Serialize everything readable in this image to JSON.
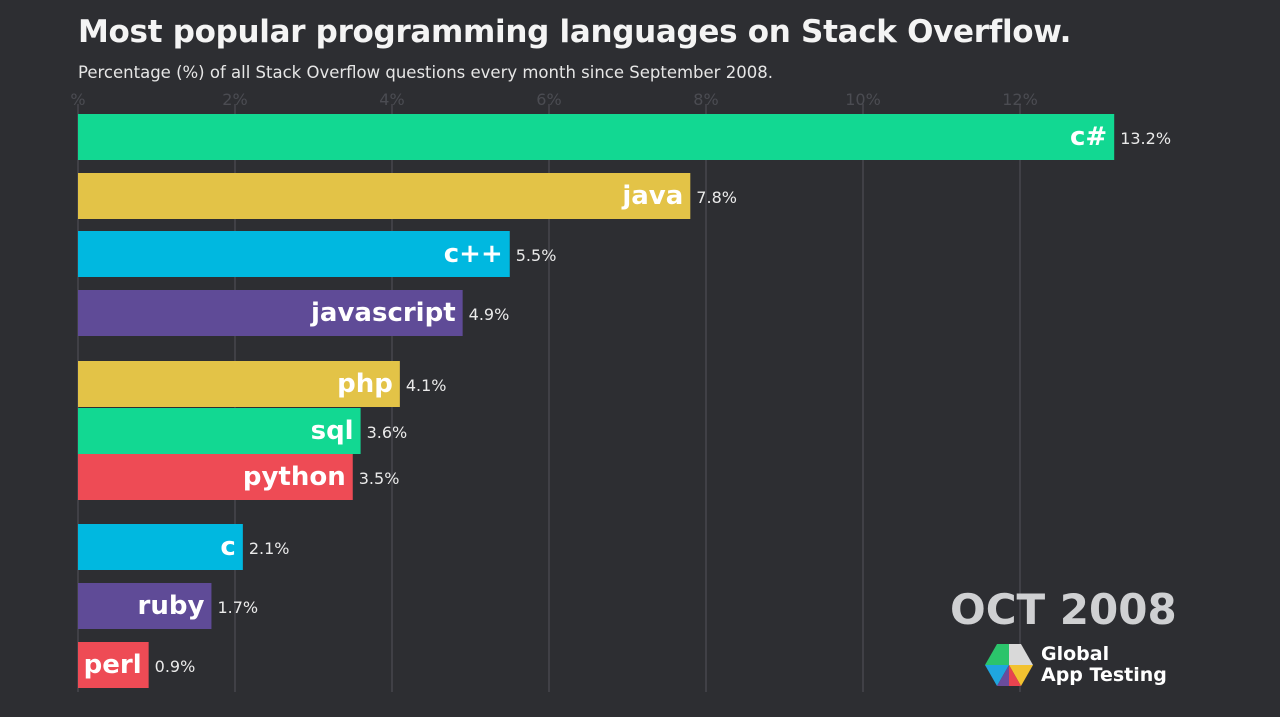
{
  "title": "Most popular programming languages on Stack Overflow.",
  "subtitle": "Percentage (%) of all Stack Overflow questions every month since September 2008.",
  "date_label": "OCT 2008",
  "logo": {
    "line1": "Global",
    "line2": "App Testing"
  },
  "chart_data": {
    "type": "bar",
    "orientation": "horizontal",
    "title": "Most popular programming languages on Stack Overflow.",
    "subtitle": "Percentage (%) of all Stack Overflow questions every month since September 2008.",
    "xlabel": "",
    "ylabel": "",
    "xlim": [
      0,
      13.5
    ],
    "grid": true,
    "x_ticks": [
      0,
      2,
      4,
      6,
      8,
      10,
      12
    ],
    "x_tick_labels": [
      "%",
      "2%",
      "4%",
      "6%",
      "8%",
      "10%",
      "12%"
    ],
    "categories": [
      "c#",
      "java",
      "c++",
      "javascript",
      "php",
      "sql",
      "python",
      "c",
      "ruby",
      "perl"
    ],
    "values": [
      13.2,
      7.8,
      5.5,
      4.9,
      4.1,
      3.6,
      3.5,
      2.1,
      1.7,
      0.9
    ],
    "value_labels": [
      "13.2%",
      "7.8%",
      "5.5%",
      "4.9%",
      "4.1%",
      "3.6%",
      "3.5%",
      "2.1%",
      "1.7%",
      "0.9%"
    ],
    "colors": [
      "#12d892",
      "#e3c347",
      "#00b8e0",
      "#5f4b97",
      "#e3c347",
      "#12d892",
      "#ee4b55",
      "#00b8e0",
      "#5f4b97",
      "#ee4b55"
    ]
  }
}
